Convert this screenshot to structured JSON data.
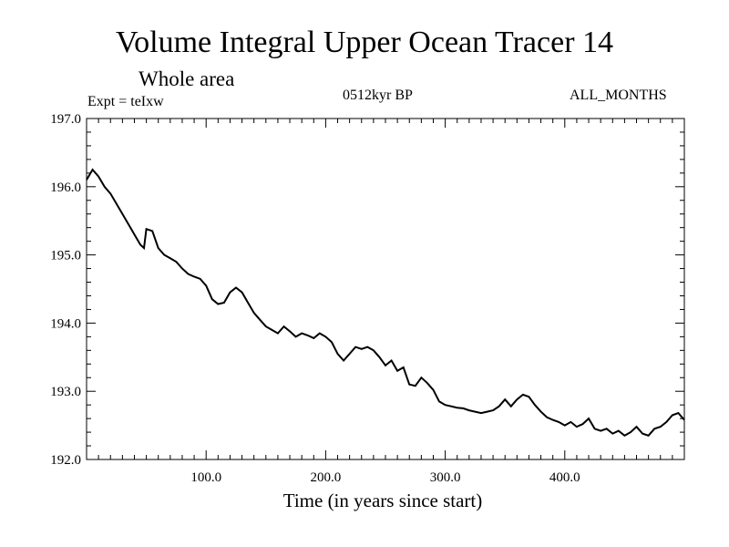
{
  "header": {
    "title": "Volume Integral Upper Ocean Tracer 14",
    "subtitle": "Whole area",
    "experiment": "Expt = teIxw",
    "period": "0512kyr BP",
    "months": "ALL_MONTHS"
  },
  "chart_data": {
    "type": "line",
    "title": "Volume Integral Upper Ocean Tracer 14",
    "xlabel": "Time (in years since start)",
    "ylabel": "",
    "xlim": [
      0,
      500
    ],
    "ylim": [
      192.0,
      197.0
    ],
    "x_ticks": [
      "100.0",
      "200.0",
      "300.0",
      "400.0"
    ],
    "y_ticks": [
      "192.0",
      "193.0",
      "194.0",
      "195.0",
      "196.0",
      "197.0"
    ],
    "grid": false,
    "color": "#000000",
    "series": [
      {
        "x": [
          0,
          5,
          10,
          15,
          20,
          25,
          30,
          35,
          40,
          45,
          48,
          50,
          55,
          60,
          65,
          70,
          75,
          80,
          85,
          90,
          95,
          100,
          105,
          110,
          115,
          120,
          125,
          130,
          135,
          140,
          145,
          150,
          155,
          160,
          165,
          170,
          175,
          180,
          185,
          190,
          195,
          200,
          205,
          210,
          215,
          220,
          225,
          230,
          235,
          240,
          245,
          250,
          255,
          260,
          265,
          270,
          275,
          280,
          285,
          290,
          295,
          300,
          305,
          310,
          315,
          320,
          325,
          330,
          335,
          340,
          345,
          350,
          355,
          360,
          365,
          370,
          375,
          380,
          385,
          390,
          395,
          400,
          405,
          410,
          415,
          420,
          425,
          430,
          435,
          440,
          445,
          450,
          455,
          460,
          465,
          470,
          475,
          480,
          485,
          490,
          495,
          500
        ],
        "y": [
          196.1,
          196.25,
          196.15,
          196.0,
          195.9,
          195.75,
          195.6,
          195.45,
          195.3,
          195.15,
          195.1,
          195.38,
          195.35,
          195.1,
          195.0,
          194.95,
          194.9,
          194.8,
          194.72,
          194.68,
          194.65,
          194.55,
          194.35,
          194.28,
          194.3,
          194.45,
          194.52,
          194.45,
          194.3,
          194.15,
          194.05,
          193.95,
          193.9,
          193.85,
          193.95,
          193.88,
          193.8,
          193.85,
          193.82,
          193.78,
          193.85,
          193.8,
          193.72,
          193.55,
          193.45,
          193.55,
          193.65,
          193.62,
          193.65,
          193.6,
          193.5,
          193.38,
          193.45,
          193.3,
          193.35,
          193.1,
          193.08,
          193.2,
          193.12,
          193.02,
          192.85,
          192.8,
          192.78,
          192.76,
          192.75,
          192.72,
          192.7,
          192.68,
          192.7,
          192.72,
          192.78,
          192.88,
          192.78,
          192.88,
          192.95,
          192.92,
          192.8,
          192.7,
          192.62,
          192.58,
          192.55,
          192.5,
          192.55,
          192.48,
          192.52,
          192.6,
          192.45,
          192.42,
          192.45,
          192.38,
          192.42,
          192.35,
          192.4,
          192.48,
          192.38,
          192.35,
          192.45,
          192.48,
          192.55,
          192.65,
          192.68,
          192.58
        ]
      }
    ]
  }
}
